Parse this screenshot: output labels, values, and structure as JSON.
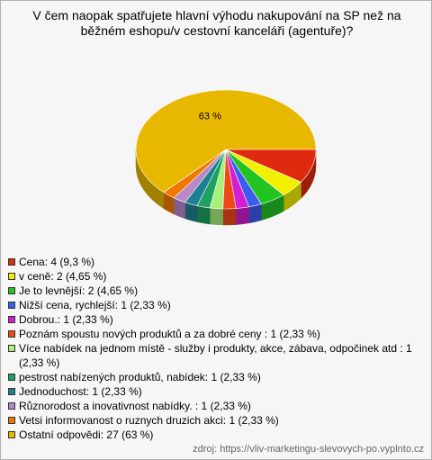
{
  "chart_data": {
    "type": "pie",
    "title": "V čem naopak spatřujete hlavní výhodu nakupování na SP než na běžném eshopu/v cestovní kanceláři (agentuře)?",
    "categories": [
      "Cena: 4 (9,3 %)",
      "v ceně: 2 (4,65 %)",
      "Je to levnější: 2 (4,65 %)",
      "Nižší cena, rychlejší: 1 (2,33 %)",
      "Dobrou.: 1 (2,33 %)",
      "Poznám spoustu nových produktů a za dobré ceny : 1 (2,33 %)",
      "Více nabídek na jednom místě - služby i produkty, akce, zábava, odpočinek atd : 1 (2,33 %)",
      "pestrost nabízených produktů, nabídek: 1 (2,33 %)",
      "Jednoduchost: 1 (2,33 %)",
      "Různorodost a inovativnost nabídky. : 1 (2,33 %)",
      "Vetsi informovanost o ruznych druzich akci: 1 (2,33 %)",
      "Ostatní odpovědi: 27 (63 %)"
    ],
    "values": [
      9.3,
      4.65,
      4.65,
      2.33,
      2.33,
      2.33,
      2.33,
      2.33,
      2.33,
      2.33,
      2.33,
      63
    ],
    "value_labels": [
      null,
      null,
      null,
      null,
      null,
      null,
      null,
      null,
      null,
      null,
      null,
      "63 %"
    ],
    "colors": [
      "#e02a10",
      "#f2f000",
      "#22c422",
      "#3c5cf0",
      "#d41ed4",
      "#f04818",
      "#a8f078",
      "#1ea060",
      "#1e8090",
      "#b888c8",
      "#f07800",
      "#e8b800"
    ],
    "source": "zdroj: https://vliv-marketingu-slevovych-po.vyplnto.cz"
  }
}
